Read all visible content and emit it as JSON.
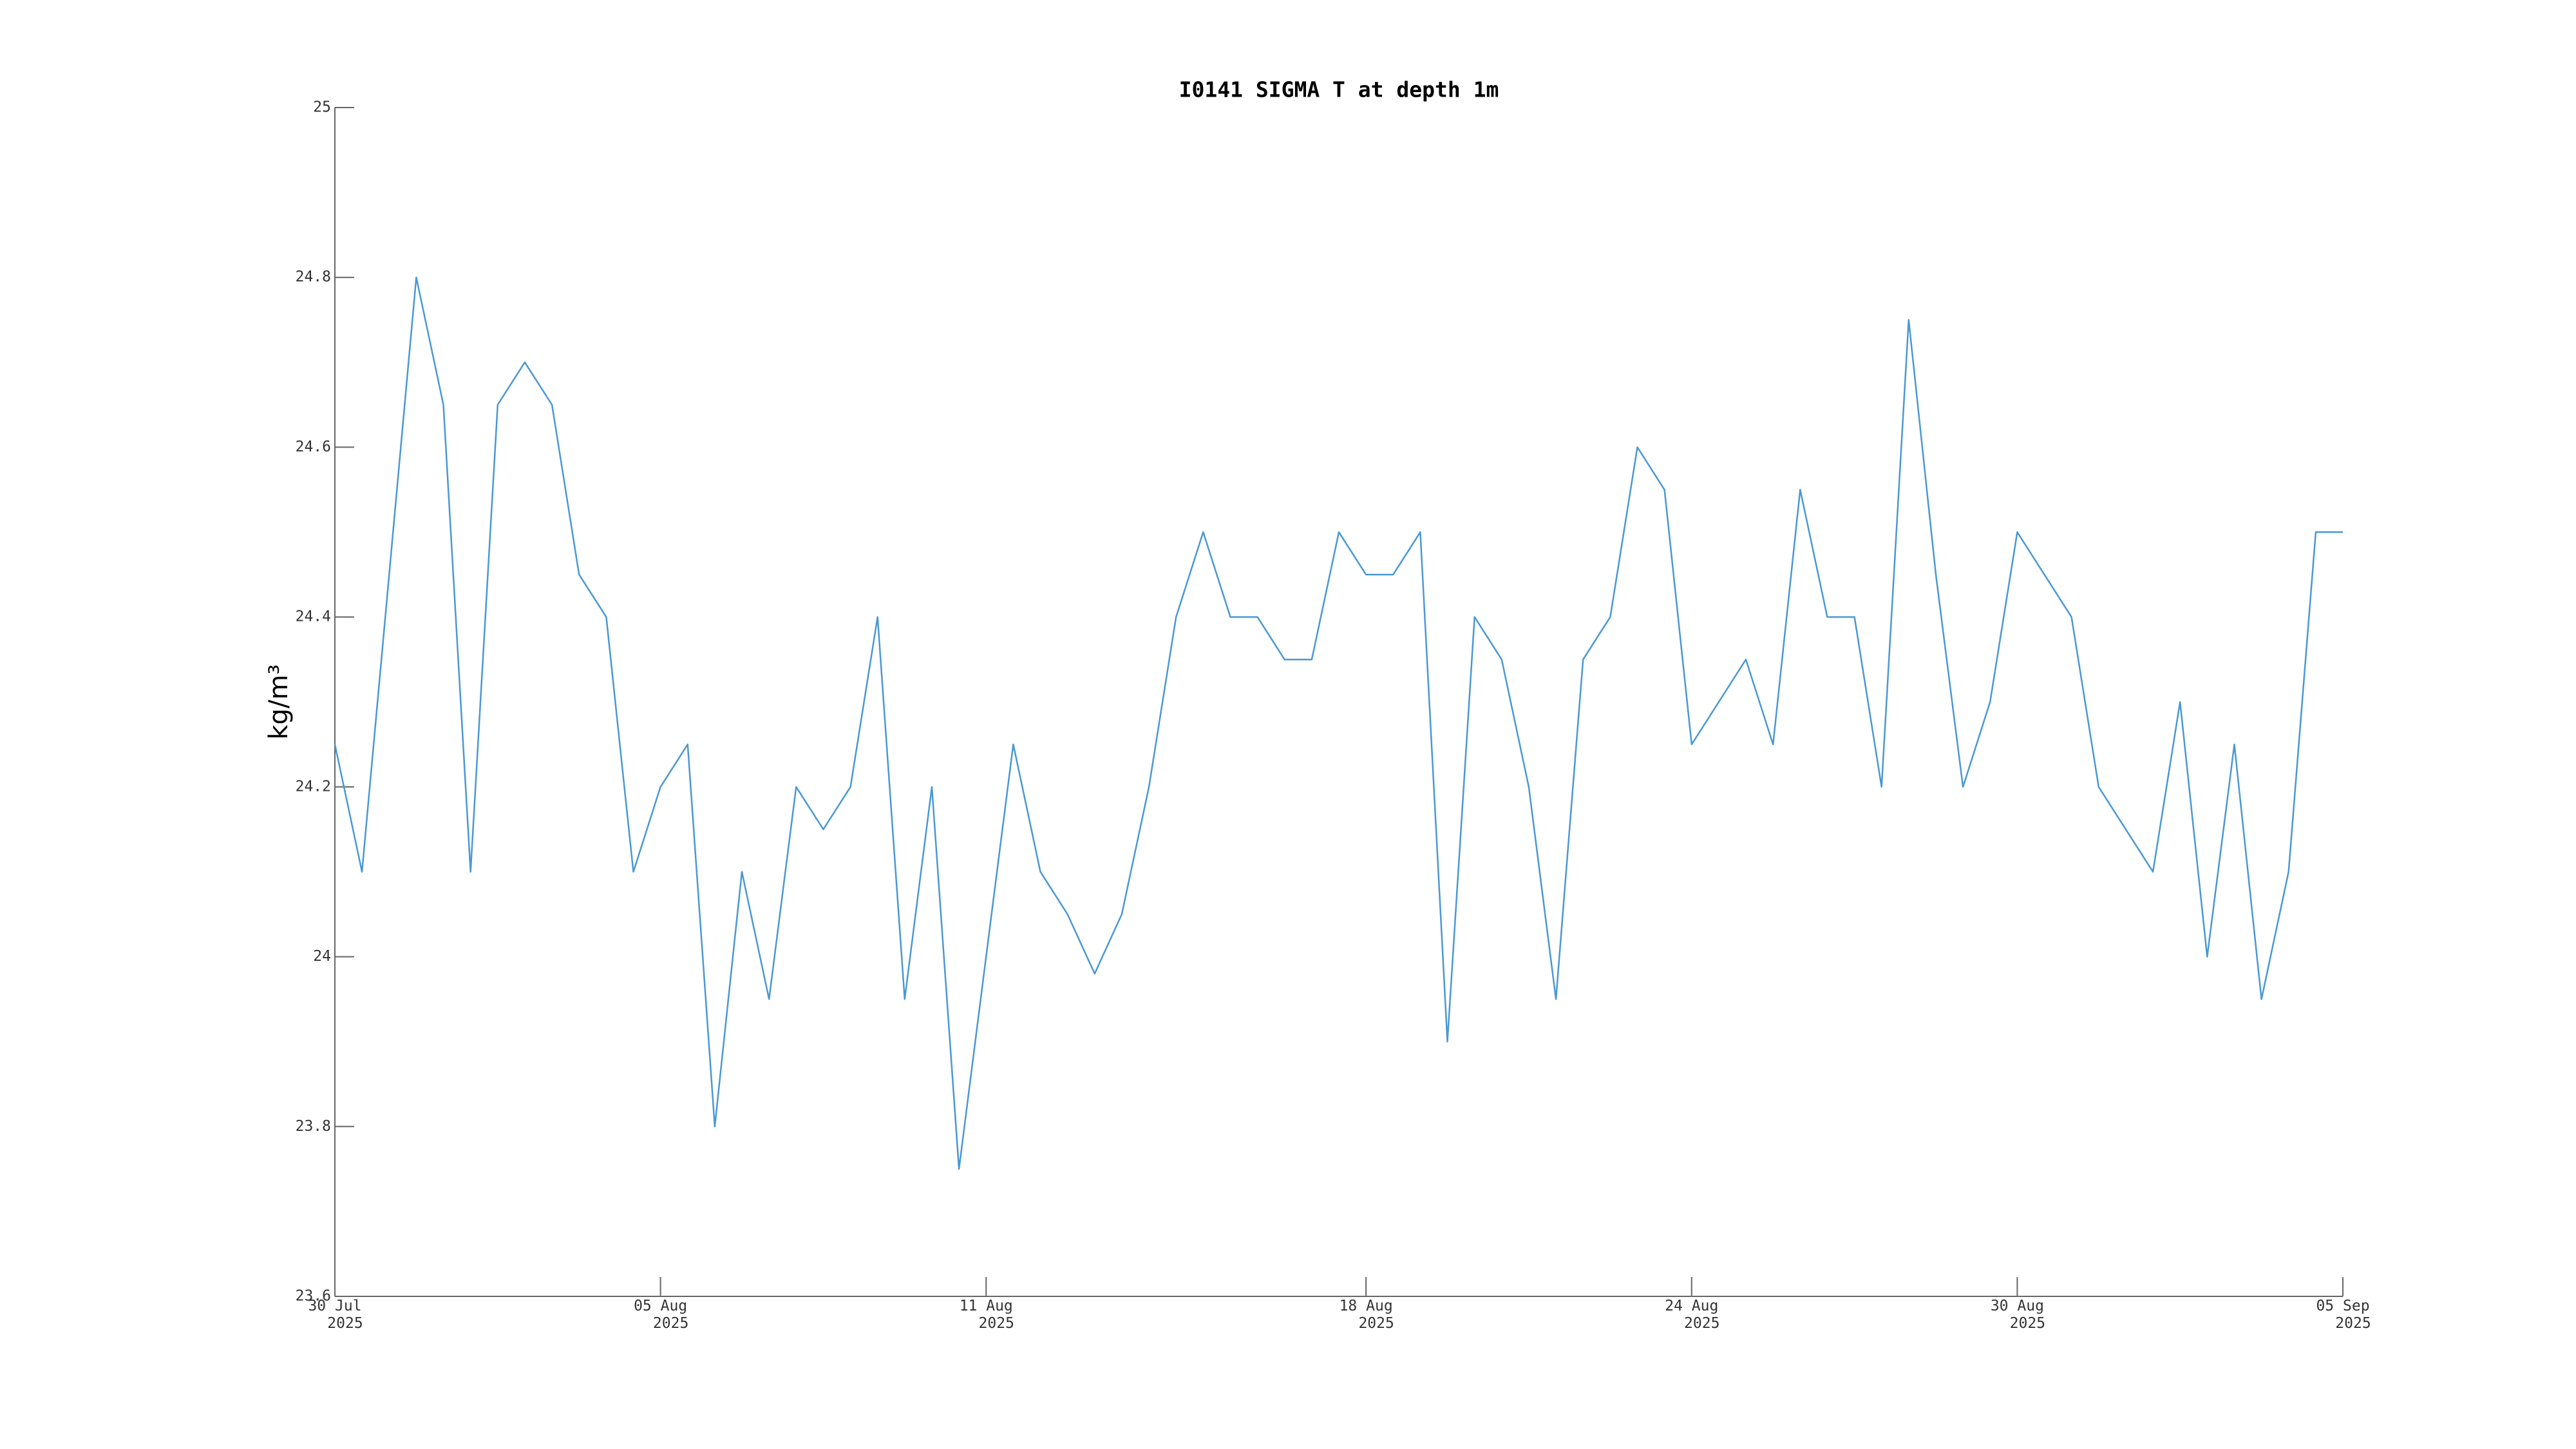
{
  "chart_data": {
    "type": "line",
    "title": "I0141 SIGMA T at depth 1m",
    "y_label": "kg/m³",
    "x": [
      "2025-07-30 00:00",
      "2025-07-30 12:00",
      "2025-07-31 00:00",
      "2025-07-31 12:00",
      "2025-08-01 00:00",
      "2025-08-01 12:00",
      "2025-08-02 00:00",
      "2025-08-02 12:00",
      "2025-08-03 00:00",
      "2025-08-03 12:00",
      "2025-08-04 00:00",
      "2025-08-04 12:00",
      "2025-08-05 00:00",
      "2025-08-05 12:00",
      "2025-08-06 00:00",
      "2025-08-06 12:00",
      "2025-08-07 00:00",
      "2025-08-07 12:00",
      "2025-08-08 00:00",
      "2025-08-08 12:00",
      "2025-08-09 00:00",
      "2025-08-09 12:00",
      "2025-08-10 00:00",
      "2025-08-10 12:00",
      "2025-08-11 00:00",
      "2025-08-11 12:00",
      "2025-08-12 00:00",
      "2025-08-12 12:00",
      "2025-08-13 00:00",
      "2025-08-13 12:00",
      "2025-08-14 00:00",
      "2025-08-14 12:00",
      "2025-08-15 00:00",
      "2025-08-15 12:00",
      "2025-08-16 00:00",
      "2025-08-16 12:00",
      "2025-08-17 00:00",
      "2025-08-17 12:00",
      "2025-08-18 00:00",
      "2025-08-18 12:00",
      "2025-08-19 00:00",
      "2025-08-19 12:00",
      "2025-08-20 00:00",
      "2025-08-20 12:00",
      "2025-08-21 00:00",
      "2025-08-21 12:00",
      "2025-08-22 00:00",
      "2025-08-22 12:00",
      "2025-08-23 00:00",
      "2025-08-23 12:00",
      "2025-08-24 00:00",
      "2025-08-24 12:00",
      "2025-08-25 00:00",
      "2025-08-25 12:00",
      "2025-08-26 00:00",
      "2025-08-26 12:00",
      "2025-08-27 00:00",
      "2025-08-27 12:00",
      "2025-08-28 00:00",
      "2025-08-28 12:00",
      "2025-08-29 00:00",
      "2025-08-29 12:00",
      "2025-08-30 00:00",
      "2025-08-30 12:00",
      "2025-08-31 00:00",
      "2025-08-31 12:00",
      "2025-09-01 00:00",
      "2025-09-01 12:00",
      "2025-09-02 00:00",
      "2025-09-02 12:00",
      "2025-09-03 00:00",
      "2025-09-03 12:00",
      "2025-09-04 00:00",
      "2025-09-04 12:00",
      "2025-09-05 00:00"
    ],
    "series": [
      {
        "color": "#4a98d4",
        "values": [
          24.25,
          24.1,
          24.45,
          24.8,
          24.65,
          24.1,
          24.65,
          24.7,
          24.65,
          24.45,
          24.4,
          24.1,
          24.2,
          24.25,
          23.8,
          24.1,
          23.95,
          24.2,
          24.15,
          24.2,
          24.4,
          23.95,
          24.2,
          23.75,
          24.0,
          24.25,
          24.1,
          24.05,
          23.98,
          24.05,
          24.2,
          24.4,
          24.5,
          24.4,
          24.4,
          24.35,
          24.35,
          24.5,
          24.45,
          24.45,
          24.5,
          23.9,
          24.4,
          24.35,
          24.2,
          23.95,
          24.35,
          24.4,
          24.6,
          24.55,
          24.25,
          24.3,
          24.35,
          24.25,
          24.55,
          24.4,
          24.4,
          24.2,
          24.75,
          24.45,
          24.2,
          24.3,
          24.5,
          24.45,
          24.4,
          24.2,
          24.15,
          24.1,
          24.3,
          24.0,
          24.25,
          23.95,
          24.1,
          24.5,
          24.5
        ]
      }
    ],
    "xlim": [
      "2025-07-30",
      "2025-09-05"
    ],
    "xticks": [
      {
        "value": "2025-07-30",
        "label": "30 Jul\n2025"
      },
      {
        "value": "2025-08-05",
        "label": "05 Aug\n2025"
      },
      {
        "value": "2025-08-11",
        "label": "11 Aug\n2025"
      },
      {
        "value": "2025-08-18",
        "label": "18 Aug\n2025"
      },
      {
        "value": "2025-08-24",
        "label": "24 Aug\n2025"
      },
      {
        "value": "2025-08-30",
        "label": "30 Aug\n2025"
      },
      {
        "value": "2025-09-05",
        "label": "05 Sep\n2025"
      }
    ],
    "ylim": [
      23.6,
      25
    ],
    "yticks": [
      23.6,
      23.8,
      24,
      24.2,
      24.4,
      24.6,
      24.8,
      25
    ],
    "grid": false
  }
}
